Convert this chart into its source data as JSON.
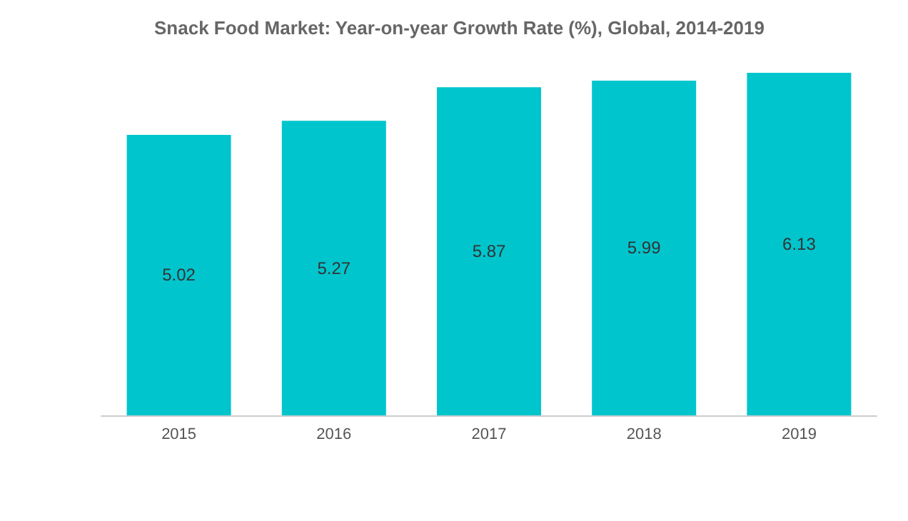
{
  "chart_data": {
    "type": "bar",
    "title": "Snack Food Market: Year-on-year Growth Rate (%), Global, 2014-2019",
    "categories": [
      "2015",
      "2016",
      "2017",
      "2018",
      "2019"
    ],
    "values": [
      5.02,
      5.27,
      5.87,
      5.99,
      6.13
    ],
    "color": "#00c5cd",
    "data_labels": true
  }
}
